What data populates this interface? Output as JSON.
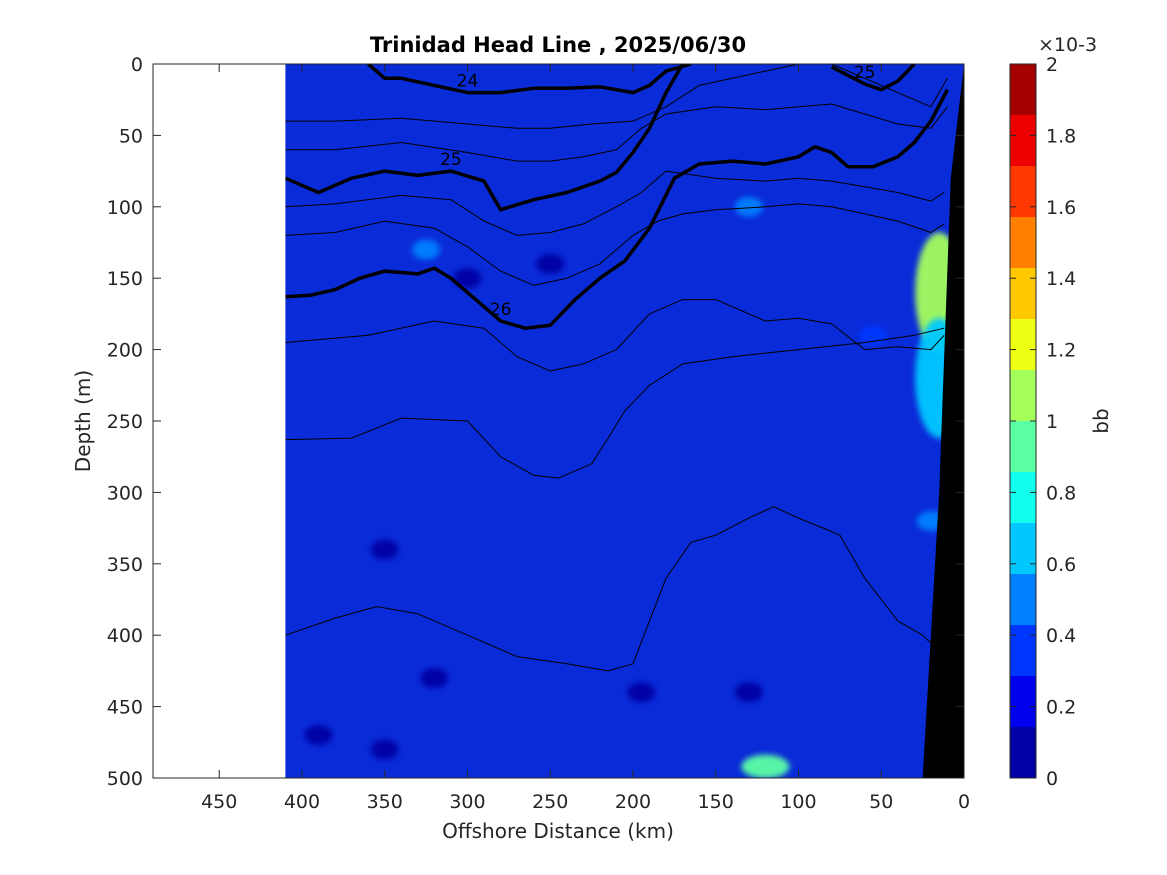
{
  "chart_data": {
    "type": "heatmap",
    "title": "Trinidad Head Line , 2025/06/30",
    "xlabel": "Offshore Distance (km)",
    "ylabel": "Depth (m)",
    "xlim": [
      490,
      0
    ],
    "ylim": [
      500,
      0
    ],
    "x_reversed": true,
    "y_reversed": true,
    "x_ticks": [
      "450",
      "400",
      "350",
      "300",
      "250",
      "200",
      "150",
      "100",
      "50",
      "0"
    ],
    "x_tick_values": [
      450,
      400,
      350,
      300,
      250,
      200,
      150,
      100,
      50,
      0
    ],
    "y_ticks": [
      "0",
      "50",
      "100",
      "150",
      "200",
      "250",
      "300",
      "350",
      "400",
      "450",
      "500"
    ],
    "y_tick_values": [
      0,
      50,
      100,
      150,
      200,
      250,
      300,
      350,
      400,
      450,
      500
    ],
    "data_x_range": [
      410,
      0
    ],
    "colormap": "jet",
    "background_field_color": "#0a2bd8",
    "bottom_color": "#000000",
    "colorbar": {
      "label": "bb",
      "exponent": "×10-3",
      "min": 0,
      "max": 2,
      "ticks": [
        "0",
        "0.2",
        "0.4",
        "0.6",
        "0.8",
        "1",
        "1.2",
        "1.4",
        "1.6",
        "1.8",
        "2"
      ],
      "tick_values": [
        0,
        0.2,
        0.4,
        0.6,
        0.8,
        1.0,
        1.2,
        1.4,
        1.6,
        1.8,
        2.0
      ],
      "levels": 14
    },
    "features": [
      {
        "x": 120,
        "y": 492,
        "value": 0.95
      },
      {
        "x": 15,
        "y": 160,
        "value": 1.1
      },
      {
        "x": 15,
        "y": 220,
        "value": 0.7
      },
      {
        "x": 20,
        "y": 320,
        "value": 0.45
      },
      {
        "x": 325,
        "y": 130,
        "value": 0.55
      },
      {
        "x": 130,
        "y": 100,
        "value": 0.45
      },
      {
        "x": 55,
        "y": 190,
        "value": 0.4
      },
      {
        "x": 350,
        "y": 340,
        "value": 0.05
      },
      {
        "x": 300,
        "y": 150,
        "value": 0.1
      },
      {
        "x": 250,
        "y": 140,
        "value": 0.1
      },
      {
        "x": 130,
        "y": 440,
        "value": 0.08
      },
      {
        "x": 195,
        "y": 440,
        "value": 0.1
      },
      {
        "x": 320,
        "y": 430,
        "value": 0.1
      },
      {
        "x": 350,
        "y": 480,
        "value": 0.1
      },
      {
        "x": 390,
        "y": 470,
        "value": 0.1
      }
    ],
    "contours": [
      {
        "level": "24",
        "bold": true,
        "x": [
          360,
          350,
          340,
          320,
          300,
          280,
          260,
          240,
          220,
          200,
          190,
          180,
          165
        ],
        "y": [
          0,
          10,
          10,
          15,
          20,
          20,
          17,
          17,
          16,
          20,
          15,
          5,
          0
        ]
      },
      {
        "level": "25",
        "bold": true,
        "x": [
          80,
          70,
          60,
          50,
          40,
          30
        ],
        "y": [
          2,
          8,
          14,
          18,
          12,
          0
        ]
      },
      {
        "level": "25",
        "bold": true,
        "x": [
          410,
          390,
          370,
          350,
          330,
          310,
          290,
          280,
          260,
          240,
          220,
          210,
          200,
          190,
          180,
          170
        ],
        "y": [
          80,
          90,
          80,
          75,
          78,
          75,
          82,
          102,
          95,
          90,
          82,
          76,
          62,
          45,
          20,
          0
        ]
      },
      {
        "level": "26",
        "bold": true,
        "x": [
          410,
          395,
          380,
          365,
          350,
          330,
          320,
          310,
          295,
          280,
          265,
          250,
          235,
          220,
          205,
          190,
          175,
          160,
          140,
          120,
          100,
          90,
          80,
          70,
          55,
          40,
          30,
          20,
          10
        ],
        "y": [
          163,
          162,
          158,
          150,
          145,
          147,
          143,
          150,
          165,
          180,
          185,
          183,
          165,
          150,
          138,
          115,
          80,
          70,
          68,
          70,
          65,
          58,
          62,
          72,
          72,
          65,
          55,
          40,
          18
        ]
      },
      {
        "level": "",
        "bold": false,
        "x": [
          410,
          380,
          340,
          300,
          270,
          250,
          225,
          200,
          180,
          160,
          120,
          100,
          80,
          60,
          40,
          20,
          10
        ],
        "y": [
          40,
          40,
          38,
          42,
          45,
          45,
          42,
          40,
          30,
          15,
          5,
          0,
          0,
          10,
          20,
          30,
          10
        ]
      },
      {
        "level": "",
        "bold": false,
        "x": [
          410,
          380,
          340,
          300,
          270,
          250,
          230,
          210,
          195,
          180,
          150,
          120,
          100,
          80,
          60,
          40,
          20,
          10
        ],
        "y": [
          60,
          60,
          55,
          62,
          68,
          68,
          65,
          60,
          45,
          35,
          30,
          32,
          30,
          28,
          35,
          42,
          45,
          30
        ]
      },
      {
        "level": "",
        "bold": false,
        "x": [
          410,
          380,
          340,
          310,
          290,
          270,
          250,
          230,
          210,
          195,
          180,
          150,
          120,
          100,
          80,
          60,
          40,
          20,
          12
        ],
        "y": [
          100,
          98,
          92,
          95,
          110,
          120,
          118,
          112,
          100,
          90,
          75,
          80,
          82,
          80,
          82,
          86,
          90,
          96,
          90
        ]
      },
      {
        "level": "",
        "bold": false,
        "x": [
          410,
          380,
          350,
          320,
          300,
          280,
          260,
          240,
          220,
          200,
          185,
          170,
          150,
          120,
          100,
          80,
          60,
          40,
          20,
          12
        ],
        "y": [
          120,
          118,
          110,
          115,
          128,
          145,
          155,
          150,
          140,
          120,
          110,
          105,
          102,
          100,
          98,
          100,
          105,
          110,
          118,
          112
        ]
      },
      {
        "level": "",
        "bold": false,
        "x": [
          410,
          360,
          320,
          290,
          270,
          250,
          230,
          210,
          190,
          170,
          150,
          120,
          100,
          80,
          60,
          40,
          20,
          12
        ],
        "y": [
          195,
          190,
          180,
          185,
          205,
          215,
          210,
          200,
          175,
          165,
          165,
          180,
          178,
          182,
          200,
          198,
          200,
          190
        ]
      },
      {
        "level": "",
        "bold": false,
        "x": [
          410,
          370,
          340,
          300,
          280,
          260,
          245,
          225,
          215,
          205,
          190,
          170,
          140,
          100,
          60,
          30,
          12
        ],
        "y": [
          263,
          262,
          248,
          250,
          275,
          288,
          290,
          280,
          262,
          243,
          225,
          210,
          205,
          200,
          195,
          190,
          185
        ]
      },
      {
        "level": "",
        "bold": false,
        "x": [
          410,
          380,
          355,
          330,
          300,
          270,
          240,
          215,
          200,
          190,
          180,
          165,
          150,
          130,
          115,
          100,
          85,
          75,
          60,
          40,
          25,
          16
        ],
        "y": [
          400,
          388,
          380,
          385,
          400,
          415,
          420,
          425,
          420,
          390,
          360,
          335,
          330,
          318,
          310,
          318,
          325,
          330,
          360,
          390,
          400,
          410
        ]
      }
    ]
  }
}
